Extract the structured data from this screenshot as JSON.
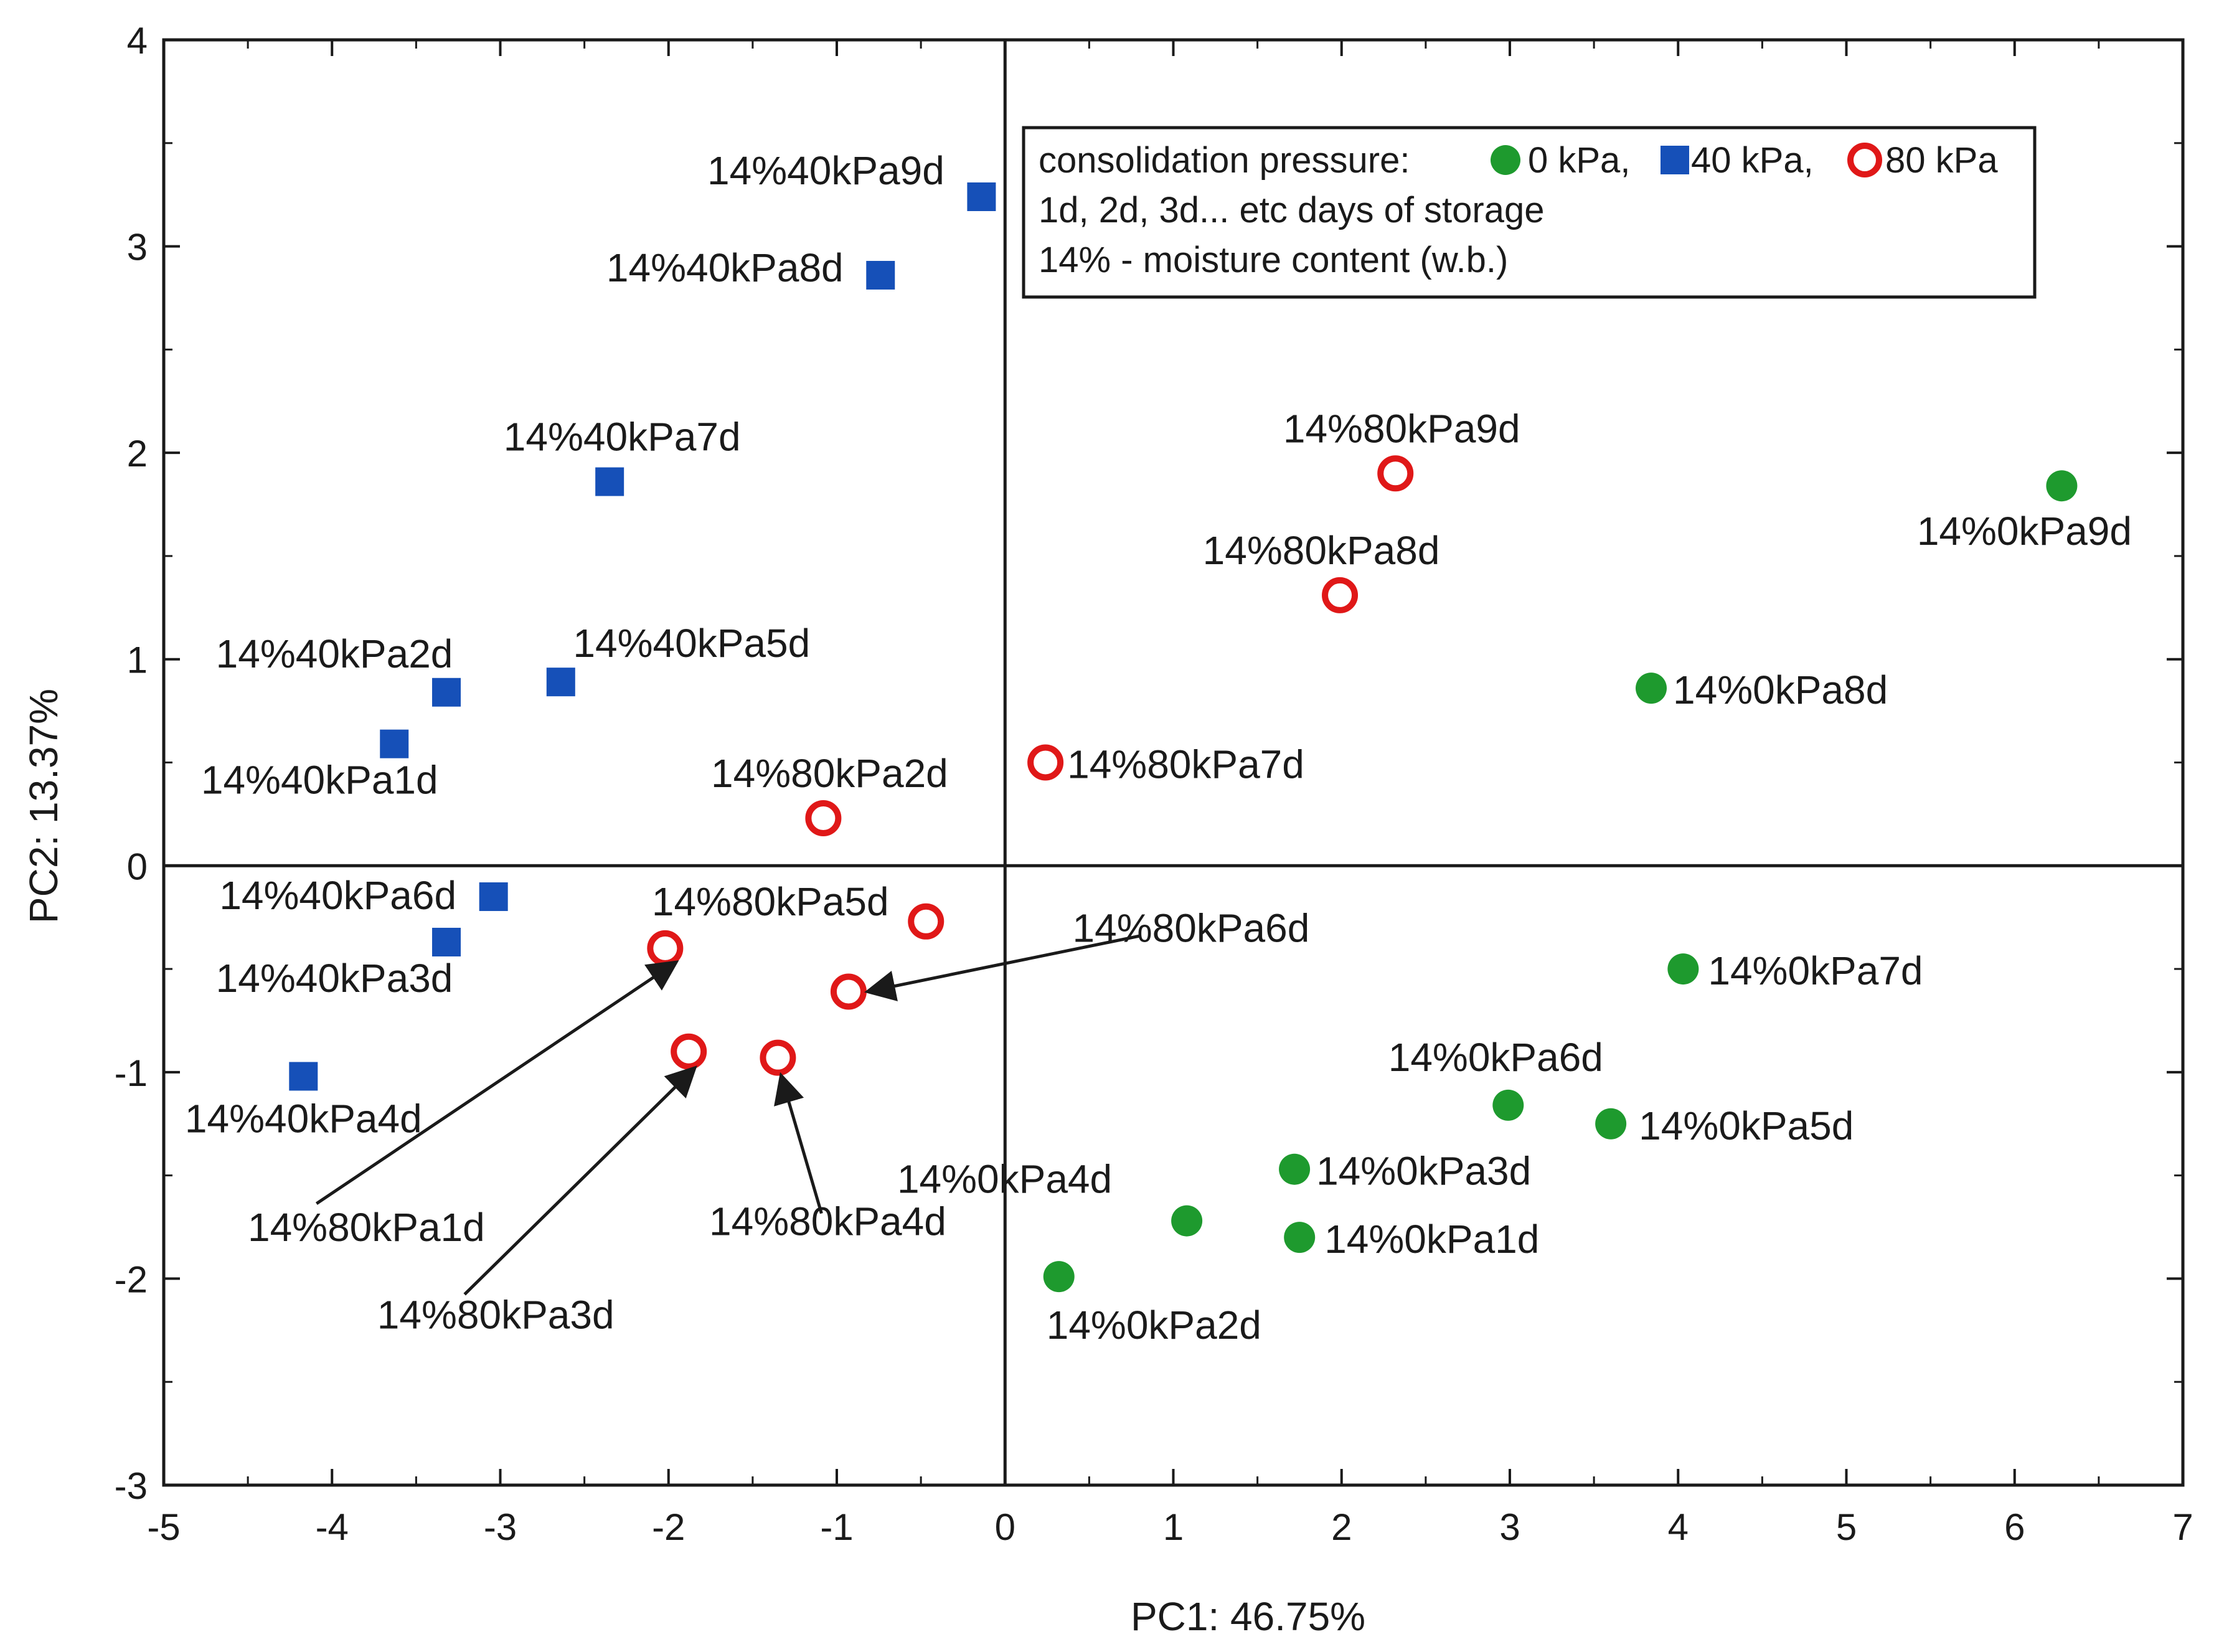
{
  "chart_data": {
    "type": "scatter",
    "title": "",
    "xlabel": "PC1: 46.75%",
    "ylabel": "PC2: 13.37%",
    "xlim": [
      -5,
      7
    ],
    "ylim": [
      -3,
      4
    ],
    "xticks": [
      -5,
      -4,
      -3,
      -2,
      -1,
      0,
      1,
      2,
      3,
      4,
      5,
      6,
      7
    ],
    "yticks": [
      -3,
      -2,
      -1,
      0,
      1,
      2,
      3,
      4
    ],
    "xtick_labels": [
      "-5",
      "-4",
      "-3",
      "-2",
      "-1",
      "0",
      "1",
      "2",
      "3",
      "4",
      "5",
      "6",
      "7"
    ],
    "ytick_labels": [
      "-3",
      "-2",
      "-1",
      "0",
      "1",
      "2",
      "3",
      "4"
    ],
    "grid": false,
    "reference_lines": {
      "x": 0,
      "y": 0
    },
    "colors": {
      "green": "#1e9a2e",
      "blue": "#1650b8",
      "red": "#e01818"
    },
    "series": [
      {
        "name": "0 kPa",
        "marker": "filled-circle",
        "points": [
          {
            "label": "14%0kPa1d",
            "x": 1.75,
            "y": -1.8
          },
          {
            "label": "14%0kPa2d",
            "x": 0.32,
            "y": -1.99
          },
          {
            "label": "14%0kPa3d",
            "x": 1.72,
            "y": -1.47
          },
          {
            "label": "14%0kPa4d",
            "x": 1.08,
            "y": -1.72
          },
          {
            "label": "14%0kPa5d",
            "x": 3.6,
            "y": -1.25
          },
          {
            "label": "14%0kPa6d",
            "x": 2.99,
            "y": -1.16
          },
          {
            "label": "14%0kPa7d",
            "x": 4.03,
            "y": -0.5
          },
          {
            "label": "14%0kPa8d",
            "x": 3.84,
            "y": 0.86
          },
          {
            "label": "14%0kPa9d",
            "x": 6.28,
            "y": 1.84
          }
        ]
      },
      {
        "name": "40 kPa",
        "marker": "filled-square",
        "points": [
          {
            "label": "14%40kPa1d",
            "x": -3.63,
            "y": 0.59
          },
          {
            "label": "14%40kPa2d",
            "x": -3.32,
            "y": 0.84
          },
          {
            "label": "14%40kPa3d",
            "x": -3.32,
            "y": -0.37
          },
          {
            "label": "14%40kPa4d",
            "x": -4.17,
            "y": -1.02
          },
          {
            "label": "14%40kPa5d",
            "x": -2.64,
            "y": 0.89
          },
          {
            "label": "14%40kPa6d",
            "x": -3.04,
            "y": -0.15
          },
          {
            "label": "14%40kPa7d",
            "x": -2.35,
            "y": 1.86
          },
          {
            "label": "14%40kPa8d",
            "x": -0.74,
            "y": 2.86
          },
          {
            "label": "14%40kPa9d",
            "x": -0.14,
            "y": 3.24
          }
        ]
      },
      {
        "name": "80 kPa",
        "marker": "open-circle",
        "points": [
          {
            "label": "14%80kPa1d",
            "x": -2.02,
            "y": -0.4
          },
          {
            "label": "14%80kPa2d",
            "x": -1.08,
            "y": 0.23
          },
          {
            "label": "14%80kPa3d",
            "x": -1.88,
            "y": -0.9
          },
          {
            "label": "14%80kPa4d",
            "x": -1.35,
            "y": -0.93
          },
          {
            "label": "14%80kPa5d",
            "x": -0.47,
            "y": -0.27
          },
          {
            "label": "14%80kPa6d",
            "x": -0.93,
            "y": -0.61
          },
          {
            "label": "14%80kPa7d",
            "x": 0.24,
            "y": 0.5
          },
          {
            "label": "14%80kPa8d",
            "x": 1.99,
            "y": 1.31
          },
          {
            "label": "14%80kPa9d",
            "x": 2.32,
            "y": 1.9
          }
        ]
      }
    ],
    "legend": {
      "placement": "top-right",
      "title": "consolidation pressure:",
      "entries": [
        "0 kPa,",
        "40 kPa,",
        "80 kPa"
      ],
      "notes": [
        "1d, 2d, 3d... etc days of storage",
        "14% - moisture content (w.b.)"
      ]
    }
  }
}
